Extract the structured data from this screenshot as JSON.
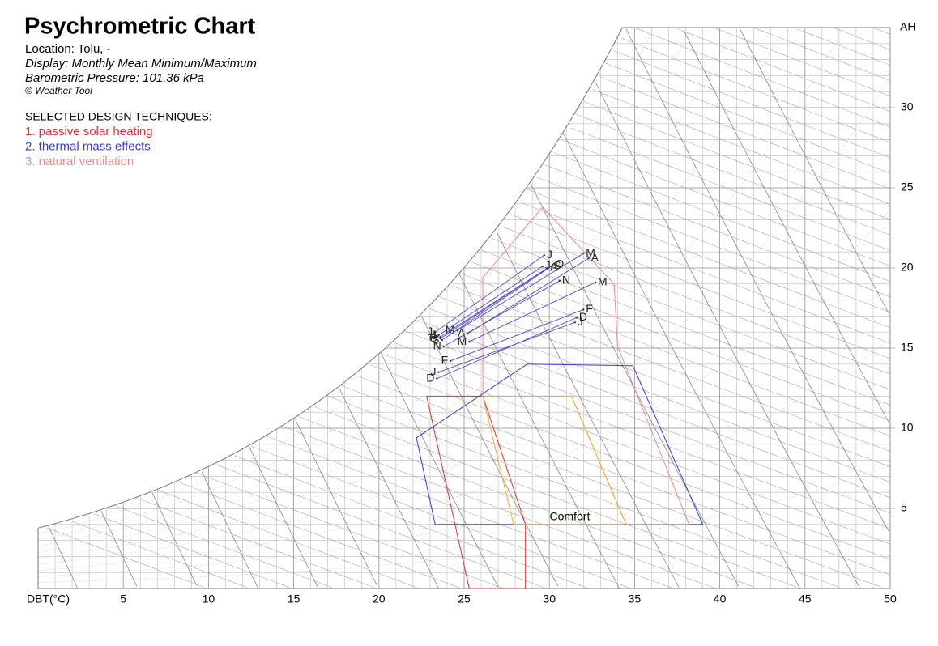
{
  "chart_data": {
    "type": "psychrometric",
    "title": "Psychrometric Chart",
    "location": "Location: Tolu, -",
    "display": "Display: Monthly Mean Minimum/Maximum",
    "pressure": "Barometric Pressure: 101.36 kPa",
    "copyright": "© Weather Tool",
    "techniques_title": "SELECTED DESIGN TECHNIQUES:",
    "x_label": "DBT(°C)",
    "y_label": "AH",
    "xlim": [
      0,
      50
    ],
    "ylim": [
      0,
      35
    ],
    "xticks": [
      5,
      10,
      15,
      20,
      25,
      30,
      35,
      40,
      45,
      50
    ],
    "yticks": [
      5,
      10,
      15,
      20,
      25,
      30
    ],
    "zones": [
      {
        "name": "1. passive solar heating",
        "color": "#e03030",
        "x": [
          22.8,
          26.1,
          28.6,
          28.6,
          25.3
        ],
        "values": [
          12.0,
          12.0,
          4.0,
          0,
          0
        ]
      },
      {
        "name": "2. thermal mass effects",
        "color": "#3a3ad8",
        "x": [
          22.2,
          28.7,
          34.9,
          39.0,
          23.3
        ],
        "values": [
          9.4,
          14.0,
          13.9,
          4.0,
          4.0
        ]
      },
      {
        "name": "3. natural ventilation",
        "color": "#f08a8a",
        "x": [
          26.1,
          26.1,
          29.6,
          33.8,
          34.0,
          38.2,
          34.5,
          31.3
        ],
        "values": [
          12.0,
          19.4,
          23.8,
          19.0,
          15.1,
          4.0,
          4.0,
          12.0
        ]
      }
    ],
    "comfort": {
      "name": "Comfort",
      "color": "#f0b030",
      "x": [
        26.1,
        31.3,
        34.5,
        27.9
      ],
      "values": [
        12.0,
        12.0,
        4.0,
        4.0
      ]
    },
    "months": {
      "color": "#4a4ad8",
      "labels": [
        "J",
        "F",
        "M",
        "A",
        "M",
        "J",
        "J",
        "A",
        "S",
        "O",
        "N",
        "D"
      ],
      "x_min": [
        23.5,
        24.2,
        25.3,
        25.2,
        24.6,
        23.3,
        23.5,
        23.6,
        23.7,
        23.6,
        23.8,
        23.4
      ],
      "values_min": [
        13.5,
        14.2,
        15.4,
        15.9,
        16.1,
        16.0,
        15.8,
        15.7,
        15.5,
        15.6,
        15.1,
        13.1
      ],
      "x_max": [
        31.5,
        32.0,
        32.7,
        32.3,
        32.0,
        29.7,
        29.6,
        29.9,
        30.1,
        30.2,
        30.6,
        31.6
      ],
      "values_max": [
        16.6,
        17.4,
        19.1,
        20.6,
        20.9,
        20.8,
        20.1,
        20.0,
        20.1,
        20.2,
        19.2,
        16.9
      ]
    }
  }
}
